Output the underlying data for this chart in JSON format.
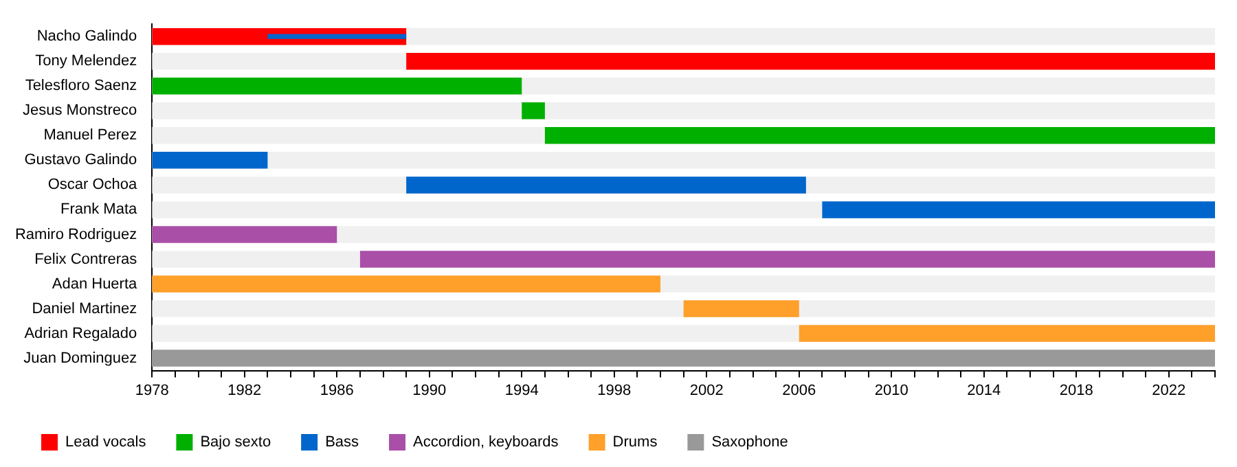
{
  "chart_data": {
    "type": "bar",
    "orientation": "horizontal",
    "legend": "bottom",
    "categories": [
      "Nacho Galindo",
      "Tony Melendez",
      "Telesfloro Saenz",
      "Jesus Monstreco",
      "Manuel Perez",
      "Gustavo Galindo",
      "Oscar Ochoa",
      "Frank Mata",
      "Ramiro Rodriguez",
      "Felix Contreras",
      "Adan Huerta",
      "Daniel Martinez",
      "Adrian Regalado",
      "Juan Dominguez"
    ],
    "series": [
      {
        "name": "Lead vocals",
        "color": "#ff0000",
        "base": [
          1978,
          1989,
          null,
          null,
          null,
          null,
          null,
          null,
          null,
          null,
          null,
          null,
          null,
          null
        ],
        "values": [
          11,
          35,
          null,
          null,
          null,
          null,
          null,
          null,
          null,
          null,
          null,
          null,
          null,
          null
        ]
      },
      {
        "name": "Bajo sexto",
        "color": "#00b000",
        "base": [
          null,
          null,
          1978,
          1994,
          1995,
          null,
          null,
          null,
          null,
          null,
          null,
          null,
          null,
          null
        ],
        "values": [
          null,
          null,
          16,
          1,
          29,
          null,
          null,
          null,
          null,
          null,
          null,
          null,
          null,
          null
        ]
      },
      {
        "name": "Bass",
        "color": "#0066cc",
        "base": [
          1983,
          null,
          null,
          null,
          null,
          1978,
          1989,
          2007,
          null,
          null,
          null,
          null,
          null,
          null
        ],
        "values": [
          6,
          null,
          null,
          null,
          null,
          5,
          17.3,
          17,
          null,
          null,
          null,
          null,
          null,
          null
        ]
      },
      {
        "name": "Accordion, keyboards",
        "color": "#aa4fa8",
        "base": [
          null,
          null,
          null,
          null,
          null,
          null,
          null,
          null,
          1978,
          1987,
          null,
          null,
          null,
          null
        ],
        "values": [
          null,
          null,
          null,
          null,
          null,
          null,
          null,
          null,
          8,
          37,
          null,
          null,
          null,
          null
        ]
      },
      {
        "name": "Drums",
        "color": "#ffa02b",
        "base": [
          null,
          null,
          null,
          null,
          null,
          null,
          null,
          null,
          null,
          null,
          1978,
          2001,
          2006,
          null
        ],
        "values": [
          null,
          null,
          null,
          null,
          null,
          null,
          null,
          null,
          null,
          null,
          22,
          5,
          18,
          null
        ]
      },
      {
        "name": "Saxophone",
        "color": "#999999",
        "base": [
          null,
          null,
          null,
          null,
          null,
          null,
          null,
          null,
          null,
          null,
          null,
          null,
          null,
          1978
        ],
        "values": [
          null,
          null,
          null,
          null,
          null,
          null,
          null,
          null,
          null,
          null,
          null,
          null,
          null,
          46
        ]
      }
    ],
    "xlim": [
      1978,
      2024
    ],
    "xticks": [
      1978,
      {
        "value": 1979,
        "label": null
      },
      {
        "value": 1980,
        "label": null
      },
      {
        "value": 1981,
        "label": null
      },
      1982,
      {
        "value": 1983,
        "label": null
      },
      {
        "value": 1984,
        "label": null
      },
      {
        "value": 1985,
        "label": null
      },
      1986,
      {
        "value": 1987,
        "label": null
      },
      {
        "value": 1988,
        "label": null
      },
      {
        "value": 1989,
        "label": null
      },
      1990,
      {
        "value": 1991,
        "label": null
      },
      {
        "value": 1992,
        "label": null
      },
      {
        "value": 1993,
        "label": null
      },
      1994,
      {
        "value": 1995,
        "label": null
      },
      {
        "value": 1996,
        "label": null
      },
      {
        "value": 1997,
        "label": null
      },
      1998,
      {
        "value": 1999,
        "label": null
      },
      {
        "value": 2000,
        "label": null
      },
      {
        "value": 2001,
        "label": null
      },
      2002,
      {
        "value": 2003,
        "label": null
      },
      {
        "value": 2004,
        "label": null
      },
      {
        "value": 2005,
        "label": null
      },
      2006,
      {
        "value": 2007,
        "label": null
      },
      {
        "value": 2008,
        "label": null
      },
      {
        "value": 2009,
        "label": null
      },
      2010,
      {
        "value": 2011,
        "label": null
      },
      {
        "value": 2012,
        "label": null
      },
      {
        "value": 2013,
        "label": null
      },
      2014,
      {
        "value": 2015,
        "label": null
      },
      {
        "value": 2016,
        "label": null
      },
      {
        "value": 2017,
        "label": null
      },
      2018,
      {
        "value": 2019,
        "label": null
      },
      {
        "value": 2020,
        "label": null
      },
      {
        "value": 2021,
        "label": null
      },
      2022,
      {
        "value": 2023,
        "label": null
      },
      {
        "value": 2024,
        "label": null
      }
    ]
  }
}
